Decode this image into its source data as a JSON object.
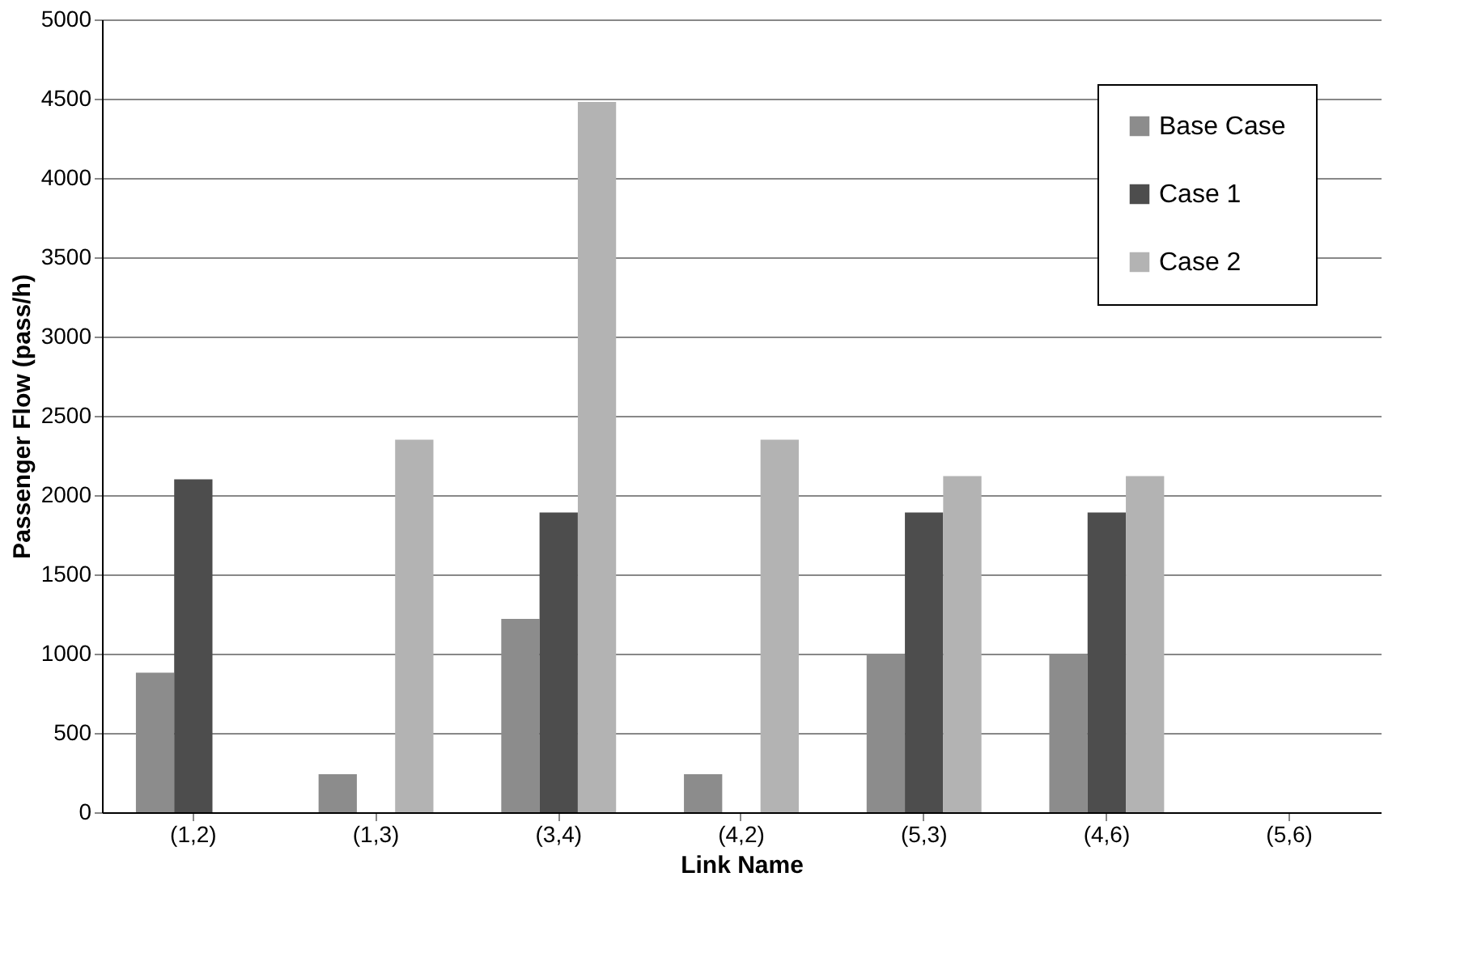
{
  "chart_data": {
    "type": "bar",
    "xlabel": "Link Name",
    "ylabel": "Passenger Flow (pass/h)",
    "categories": [
      "(1,2)",
      "(1,3)",
      "(3,4)",
      "(4,2)",
      "(5,3)",
      "(4,6)",
      "(5,6)"
    ],
    "series": [
      {
        "name": "Base Case",
        "color": "#8c8c8c",
        "values": [
          880,
          240,
          1220,
          240,
          1000,
          1000,
          0
        ]
      },
      {
        "name": "Case 1",
        "color": "#4d4d4d",
        "values": [
          2100,
          0,
          1890,
          0,
          1890,
          1890,
          0
        ]
      },
      {
        "name": "Case 2",
        "color": "#b3b3b3",
        "values": [
          0,
          2350,
          4480,
          2350,
          2120,
          2120,
          0
        ]
      }
    ],
    "ylim": [
      0,
      5000
    ],
    "yticks": [
      0,
      500,
      1000,
      1500,
      2000,
      2500,
      3000,
      3500,
      4000,
      4500,
      5000
    ],
    "grid": "y",
    "legend": "top right"
  }
}
